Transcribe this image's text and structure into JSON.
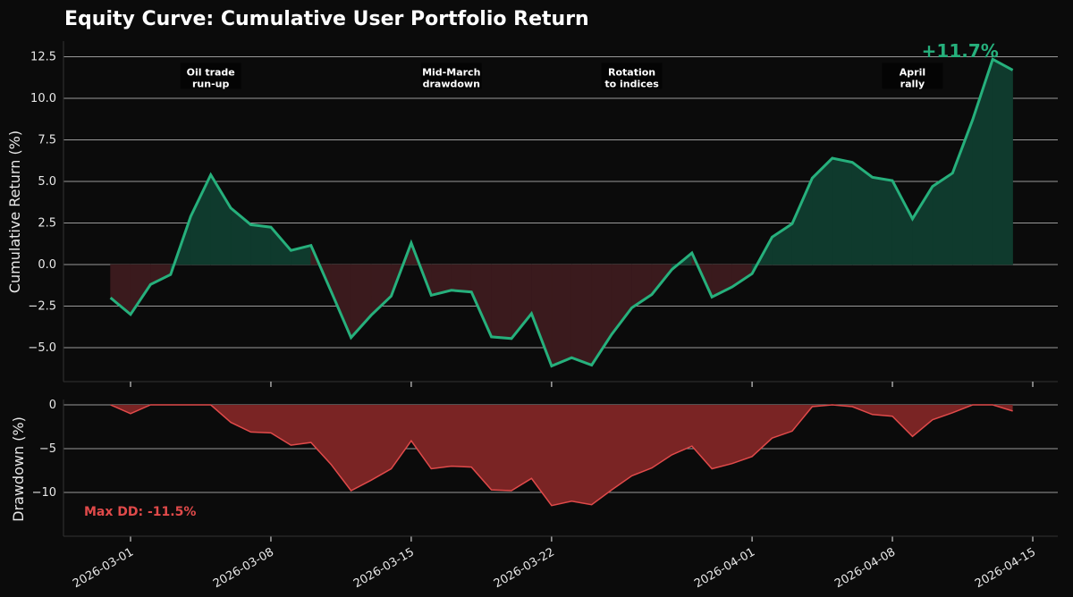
{
  "chart_data": [
    {
      "type": "area",
      "title": "Equity Curve: Cumulative User Portfolio Return",
      "ylabel": "Cumulative Return (%)",
      "ylim": [
        -7,
        13.5
      ],
      "yticks": [
        -5.0,
        -2.5,
        0.0,
        2.5,
        5.0,
        7.5,
        10.0,
        12.5
      ],
      "ytick_labels": [
        "−5.0",
        "−2.5",
        "0.0",
        "2.5",
        "5.0",
        "7.5",
        "10.0",
        "12.5"
      ],
      "x": [
        "2026-02-28",
        "2026-03-01",
        "2026-03-02",
        "2026-03-03",
        "2026-03-04",
        "2026-03-05",
        "2026-03-06",
        "2026-03-07",
        "2026-03-08",
        "2026-03-09",
        "2026-03-10",
        "2026-03-11",
        "2026-03-12",
        "2026-03-13",
        "2026-03-14",
        "2026-03-15",
        "2026-03-16",
        "2026-03-17",
        "2026-03-18",
        "2026-03-19",
        "2026-03-20",
        "2026-03-21",
        "2026-03-22",
        "2026-03-23",
        "2026-03-24",
        "2026-03-25",
        "2026-03-26",
        "2026-03-27",
        "2026-03-28",
        "2026-03-29",
        "2026-03-30",
        "2026-03-31",
        "2026-04-01",
        "2026-04-02",
        "2026-04-03",
        "2026-04-04",
        "2026-04-05",
        "2026-04-06",
        "2026-04-07",
        "2026-04-08",
        "2026-04-09",
        "2026-04-10",
        "2026-04-11",
        "2026-04-12",
        "2026-04-13",
        "2026-04-14"
      ],
      "series": [
        {
          "values": [
            -2.0,
            -3.0,
            -1.2,
            -0.6,
            2.9,
            5.4,
            3.4,
            2.4,
            2.25,
            0.85,
            1.15,
            -1.6,
            -4.4,
            -3.05,
            -1.9,
            1.3,
            -1.85,
            -1.55,
            -1.65,
            -4.35,
            -4.45,
            -2.95,
            -6.1,
            -5.6,
            -6.05,
            -4.2,
            -2.6,
            -1.8,
            -0.3,
            0.7,
            -1.95,
            -1.35,
            -0.55,
            1.65,
            2.45,
            5.2,
            6.4,
            6.15,
            5.25,
            5.05,
            2.75,
            4.7,
            5.5,
            8.7,
            12.35,
            11.7
          ],
          "color": "#26b07c"
        }
      ],
      "annotations": [
        {
          "text": [
            "Oil trade",
            "run-up"
          ],
          "x": "2026-03-05",
          "y": 11.0
        },
        {
          "text": [
            "Mid-March",
            "drawdown"
          ],
          "x": "2026-03-17",
          "y": 11.0
        },
        {
          "text": [
            "Rotation",
            "to indices"
          ],
          "x": "2026-03-26",
          "y": 11.0
        },
        {
          "text": [
            "April",
            "rally"
          ],
          "x": "2026-04-09",
          "y": 11.0
        }
      ],
      "final_label": "+11.7%",
      "grid": true
    },
    {
      "type": "area",
      "ylabel": "Drawdown (%)",
      "ylim": [
        -15,
        0.8
      ],
      "yticks": [
        -10,
        -5,
        0
      ],
      "ytick_labels": [
        "−10",
        "−5",
        "0"
      ],
      "xticks": [
        "2026-03-01",
        "2026-03-08",
        "2026-03-15",
        "2026-03-22",
        "2026-04-01",
        "2026-04-08",
        "2026-04-15"
      ],
      "series": [
        {
          "values": [
            0,
            -1.0,
            0,
            0,
            0,
            0,
            -2.0,
            -3.1,
            -3.2,
            -4.6,
            -4.3,
            -6.8,
            -9.8,
            -8.6,
            -7.3,
            -4.1,
            -7.3,
            -7.0,
            -7.1,
            -9.7,
            -9.8,
            -8.4,
            -11.5,
            -11.0,
            -11.4,
            -9.7,
            -8.1,
            -7.2,
            -5.7,
            -4.7,
            -7.3,
            -6.7,
            -5.9,
            -3.8,
            -3.0,
            -0.2,
            0,
            -0.2,
            -1.1,
            -1.3,
            -3.6,
            -1.7,
            -0.9,
            0,
            0,
            -0.7
          ],
          "color": "#e04a4a"
        }
      ],
      "max_dd_label": "Max DD: -11.5%",
      "grid": true
    }
  ]
}
